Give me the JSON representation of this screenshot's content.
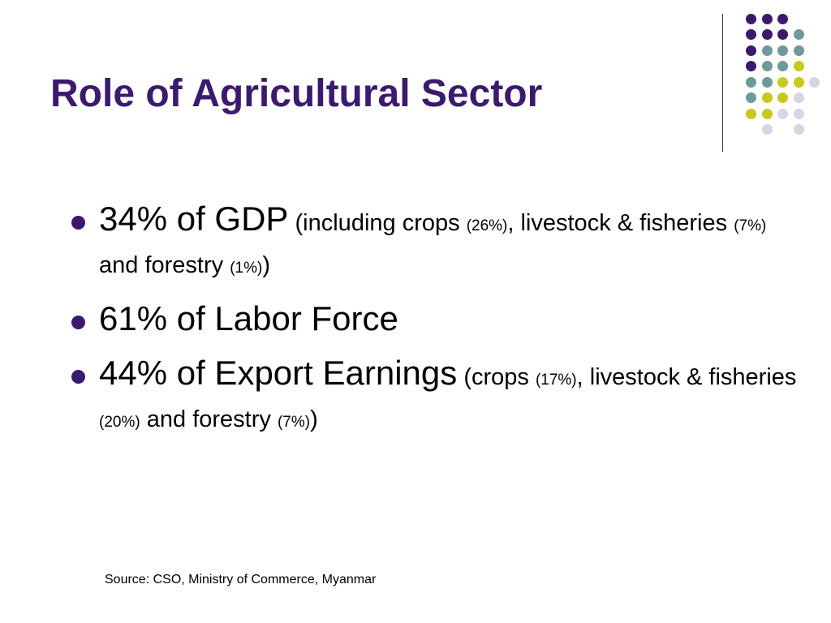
{
  "colors": {
    "title": "#3b1a6e",
    "bullet": "#3b1a6e",
    "divider": "#333333",
    "dot_purple": "#3b1a6e",
    "dot_teal": "#6e9a9a",
    "dot_lime": "#c8c81e",
    "dot_lavender": "#d5d5e6"
  },
  "slide": {
    "title": "Role of Agricultural Sector",
    "bullets": [
      {
        "main": "34% of GDP",
        "t1": "(including crops",
        "s1": "(26%)",
        "t2": ", livestock & fisheries",
        "s2": "(7%)",
        "t3": "and forestry",
        "s3": "(1%)",
        "t4": ")"
      },
      {
        "main": "61% of Labor Force"
      },
      {
        "main": "44% of Export Earnings",
        "t1": "(crops",
        "s1": "(17%)",
        "t2": ", livestock & fisheries",
        "s2": "(20%)",
        "t3": "and forestry",
        "s3": "(7%)",
        "t4": ")"
      }
    ],
    "source": "Source: CSO, Ministry of Commerce, Myanmar"
  }
}
